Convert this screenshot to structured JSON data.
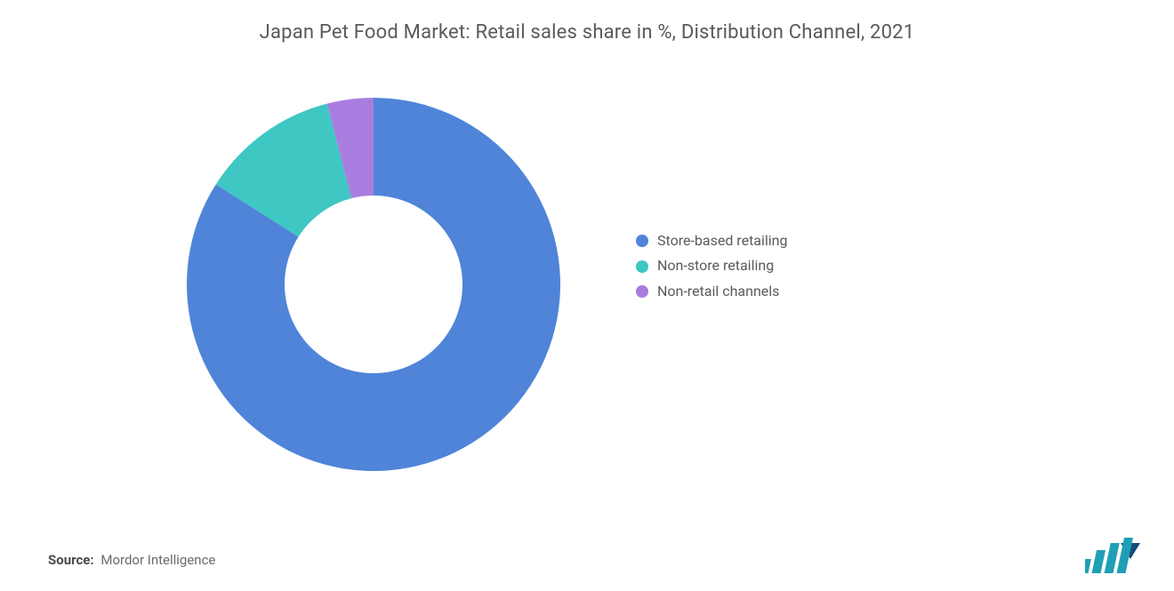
{
  "chart": {
    "type": "donut",
    "title": "Japan Pet Food Market: Retail sales share in %, Distribution Channel, 2021",
    "title_fontsize": 22,
    "title_color": "#5a5a5a",
    "background_color": "#ffffff",
    "outer_radius": 210,
    "inner_radius": 100,
    "start_angle_deg": 90,
    "direction": "clockwise",
    "slices": [
      {
        "label": "Store-based retailing",
        "value": 84,
        "color": "#4f84d9"
      },
      {
        "label": "Non-store retailing",
        "value": 12,
        "color": "#3ec7c3"
      },
      {
        "label": "Non-retail channels",
        "value": 4,
        "color": "#a97de0"
      }
    ],
    "legend": {
      "fontsize": 16,
      "text_color": "#5a5a5a",
      "swatch_shape": "circle",
      "swatch_size": 14
    }
  },
  "source": {
    "label": "Source:",
    "value": "Mordor Intelligence",
    "label_fontsize": 15,
    "label_weight": 700,
    "value_weight": 400,
    "text_color": "#4a4a4a"
  },
  "logo": {
    "name": "mordor-intelligence-logo",
    "bar_color": "#1f9fb5",
    "accent_color": "#164a7a"
  }
}
